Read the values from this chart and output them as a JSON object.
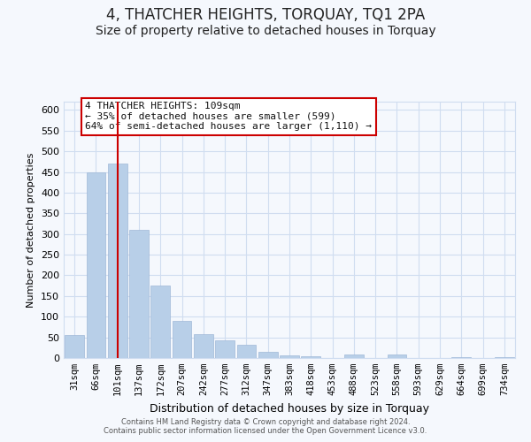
{
  "title": "4, THATCHER HEIGHTS, TORQUAY, TQ1 2PA",
  "subtitle": "Size of property relative to detached houses in Torquay",
  "xlabel": "Distribution of detached houses by size in Torquay",
  "ylabel": "Number of detached properties",
  "bar_labels": [
    "31sqm",
    "66sqm",
    "101sqm",
    "137sqm",
    "172sqm",
    "207sqm",
    "242sqm",
    "277sqm",
    "312sqm",
    "347sqm",
    "383sqm",
    "418sqm",
    "453sqm",
    "488sqm",
    "523sqm",
    "558sqm",
    "593sqm",
    "629sqm",
    "664sqm",
    "699sqm",
    "734sqm"
  ],
  "bar_values": [
    55,
    450,
    470,
    310,
    175,
    90,
    58,
    42,
    32,
    15,
    7,
    5,
    0,
    8,
    0,
    8,
    0,
    0,
    3,
    0,
    3
  ],
  "bar_color": "#b8cfe8",
  "vline_x_index": 2,
  "vline_color": "#cc0000",
  "ylim": [
    0,
    620
  ],
  "yticks": [
    0,
    50,
    100,
    150,
    200,
    250,
    300,
    350,
    400,
    450,
    500,
    550,
    600
  ],
  "annotation_title": "4 THATCHER HEIGHTS: 109sqm",
  "annotation_line1": "← 35% of detached houses are smaller (599)",
  "annotation_line2": "64% of semi-detached houses are larger (1,110) →",
  "annotation_box_color": "#ffffff",
  "annotation_box_edge": "#cc0000",
  "footer_line1": "Contains HM Land Registry data © Crown copyright and database right 2024.",
  "footer_line2": "Contains public sector information licensed under the Open Government Licence v3.0.",
  "background_color": "#f5f8fd",
  "grid_color": "#d0ddf0",
  "title_fontsize": 12,
  "subtitle_fontsize": 10,
  "ylabel_fontsize": 8,
  "xlabel_fontsize": 9,
  "tick_fontsize": 7.5,
  "ytick_fontsize": 8,
  "annotation_fontsize": 8,
  "footer_fontsize": 6
}
